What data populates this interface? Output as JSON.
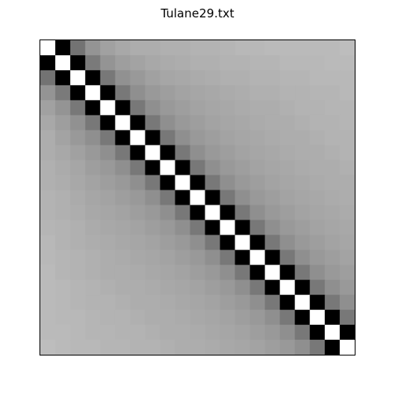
{
  "chart_data": {
    "type": "heatmap",
    "title": "Tulane29.txt",
    "xlabel": "",
    "ylabel": "",
    "size": 21,
    "colormap": "gray",
    "color_range": [
      0,
      1
    ],
    "axes_ticks": false,
    "grid": false,
    "legend": "none",
    "values": [
      [
        1.0,
        0.0,
        0.45,
        0.58,
        0.63,
        0.66,
        0.68,
        0.68,
        0.69,
        0.69,
        0.7,
        0.7,
        0.71,
        0.72,
        0.72,
        0.73,
        0.73,
        0.73,
        0.73,
        0.73,
        0.74
      ],
      [
        0.0,
        1.0,
        0.0,
        0.48,
        0.58,
        0.62,
        0.64,
        0.66,
        0.67,
        0.68,
        0.69,
        0.69,
        0.7,
        0.7,
        0.71,
        0.71,
        0.72,
        0.72,
        0.72,
        0.73,
        0.73
      ],
      [
        0.45,
        0.0,
        1.0,
        0.0,
        0.47,
        0.57,
        0.6,
        0.63,
        0.65,
        0.66,
        0.67,
        0.68,
        0.69,
        0.69,
        0.7,
        0.7,
        0.71,
        0.71,
        0.72,
        0.72,
        0.72
      ],
      [
        0.58,
        0.48,
        0.0,
        1.0,
        0.0,
        0.47,
        0.56,
        0.6,
        0.62,
        0.64,
        0.65,
        0.66,
        0.67,
        0.68,
        0.69,
        0.69,
        0.7,
        0.7,
        0.71,
        0.71,
        0.72
      ],
      [
        0.63,
        0.58,
        0.47,
        0.0,
        1.0,
        0.0,
        0.47,
        0.56,
        0.6,
        0.62,
        0.64,
        0.65,
        0.66,
        0.67,
        0.68,
        0.68,
        0.69,
        0.7,
        0.7,
        0.71,
        0.71
      ],
      [
        0.66,
        0.62,
        0.57,
        0.47,
        0.0,
        1.0,
        0.0,
        0.47,
        0.56,
        0.6,
        0.62,
        0.64,
        0.65,
        0.66,
        0.67,
        0.68,
        0.68,
        0.69,
        0.7,
        0.7,
        0.71
      ],
      [
        0.68,
        0.64,
        0.6,
        0.56,
        0.47,
        0.0,
        1.0,
        0.0,
        0.47,
        0.56,
        0.6,
        0.62,
        0.64,
        0.65,
        0.66,
        0.67,
        0.68,
        0.68,
        0.69,
        0.7,
        0.7
      ],
      [
        0.68,
        0.66,
        0.63,
        0.6,
        0.56,
        0.47,
        0.0,
        1.0,
        0.0,
        0.47,
        0.56,
        0.6,
        0.62,
        0.64,
        0.65,
        0.66,
        0.67,
        0.68,
        0.68,
        0.69,
        0.7
      ],
      [
        0.69,
        0.67,
        0.65,
        0.62,
        0.6,
        0.56,
        0.47,
        0.0,
        1.0,
        0.0,
        0.47,
        0.56,
        0.6,
        0.62,
        0.64,
        0.65,
        0.66,
        0.67,
        0.68,
        0.68,
        0.69
      ],
      [
        0.69,
        0.68,
        0.66,
        0.64,
        0.62,
        0.6,
        0.56,
        0.47,
        0.0,
        1.0,
        0.0,
        0.47,
        0.56,
        0.6,
        0.62,
        0.64,
        0.65,
        0.66,
        0.67,
        0.68,
        0.68
      ],
      [
        0.7,
        0.69,
        0.67,
        0.65,
        0.64,
        0.62,
        0.6,
        0.56,
        0.47,
        0.0,
        1.0,
        0.0,
        0.47,
        0.56,
        0.6,
        0.62,
        0.64,
        0.65,
        0.66,
        0.67,
        0.68
      ],
      [
        0.7,
        0.69,
        0.68,
        0.66,
        0.65,
        0.64,
        0.62,
        0.6,
        0.56,
        0.47,
        0.0,
        1.0,
        0.0,
        0.47,
        0.56,
        0.6,
        0.62,
        0.64,
        0.65,
        0.66,
        0.67
      ],
      [
        0.71,
        0.7,
        0.69,
        0.67,
        0.66,
        0.65,
        0.64,
        0.62,
        0.6,
        0.56,
        0.47,
        0.0,
        1.0,
        0.0,
        0.47,
        0.56,
        0.6,
        0.62,
        0.64,
        0.65,
        0.66
      ],
      [
        0.72,
        0.7,
        0.69,
        0.68,
        0.67,
        0.66,
        0.65,
        0.64,
        0.62,
        0.6,
        0.56,
        0.47,
        0.0,
        1.0,
        0.0,
        0.47,
        0.56,
        0.6,
        0.62,
        0.64,
        0.65
      ],
      [
        0.72,
        0.71,
        0.7,
        0.69,
        0.68,
        0.67,
        0.66,
        0.65,
        0.64,
        0.62,
        0.6,
        0.56,
        0.47,
        0.0,
        1.0,
        0.0,
        0.47,
        0.56,
        0.6,
        0.62,
        0.64
      ],
      [
        0.73,
        0.71,
        0.7,
        0.69,
        0.68,
        0.68,
        0.67,
        0.66,
        0.65,
        0.64,
        0.62,
        0.6,
        0.56,
        0.47,
        0.0,
        1.0,
        0.0,
        0.47,
        0.56,
        0.6,
        0.62
      ],
      [
        0.73,
        0.72,
        0.71,
        0.7,
        0.69,
        0.68,
        0.68,
        0.67,
        0.66,
        0.65,
        0.64,
        0.62,
        0.6,
        0.56,
        0.47,
        0.0,
        1.0,
        0.0,
        0.47,
        0.56,
        0.6
      ],
      [
        0.73,
        0.72,
        0.71,
        0.7,
        0.7,
        0.69,
        0.68,
        0.68,
        0.67,
        0.66,
        0.65,
        0.64,
        0.62,
        0.6,
        0.56,
        0.47,
        0.0,
        1.0,
        0.0,
        0.47,
        0.56
      ],
      [
        0.73,
        0.72,
        0.72,
        0.71,
        0.7,
        0.7,
        0.69,
        0.68,
        0.68,
        0.67,
        0.66,
        0.65,
        0.64,
        0.62,
        0.6,
        0.56,
        0.47,
        0.0,
        1.0,
        0.0,
        0.47
      ],
      [
        0.73,
        0.73,
        0.72,
        0.71,
        0.71,
        0.7,
        0.7,
        0.69,
        0.68,
        0.68,
        0.67,
        0.66,
        0.65,
        0.64,
        0.62,
        0.6,
        0.56,
        0.47,
        0.0,
        1.0,
        0.0
      ],
      [
        0.74,
        0.73,
        0.72,
        0.72,
        0.71,
        0.71,
        0.7,
        0.7,
        0.69,
        0.68,
        0.68,
        0.67,
        0.66,
        0.65,
        0.64,
        0.62,
        0.6,
        0.56,
        0.47,
        0.0,
        1.0
      ]
    ]
  }
}
